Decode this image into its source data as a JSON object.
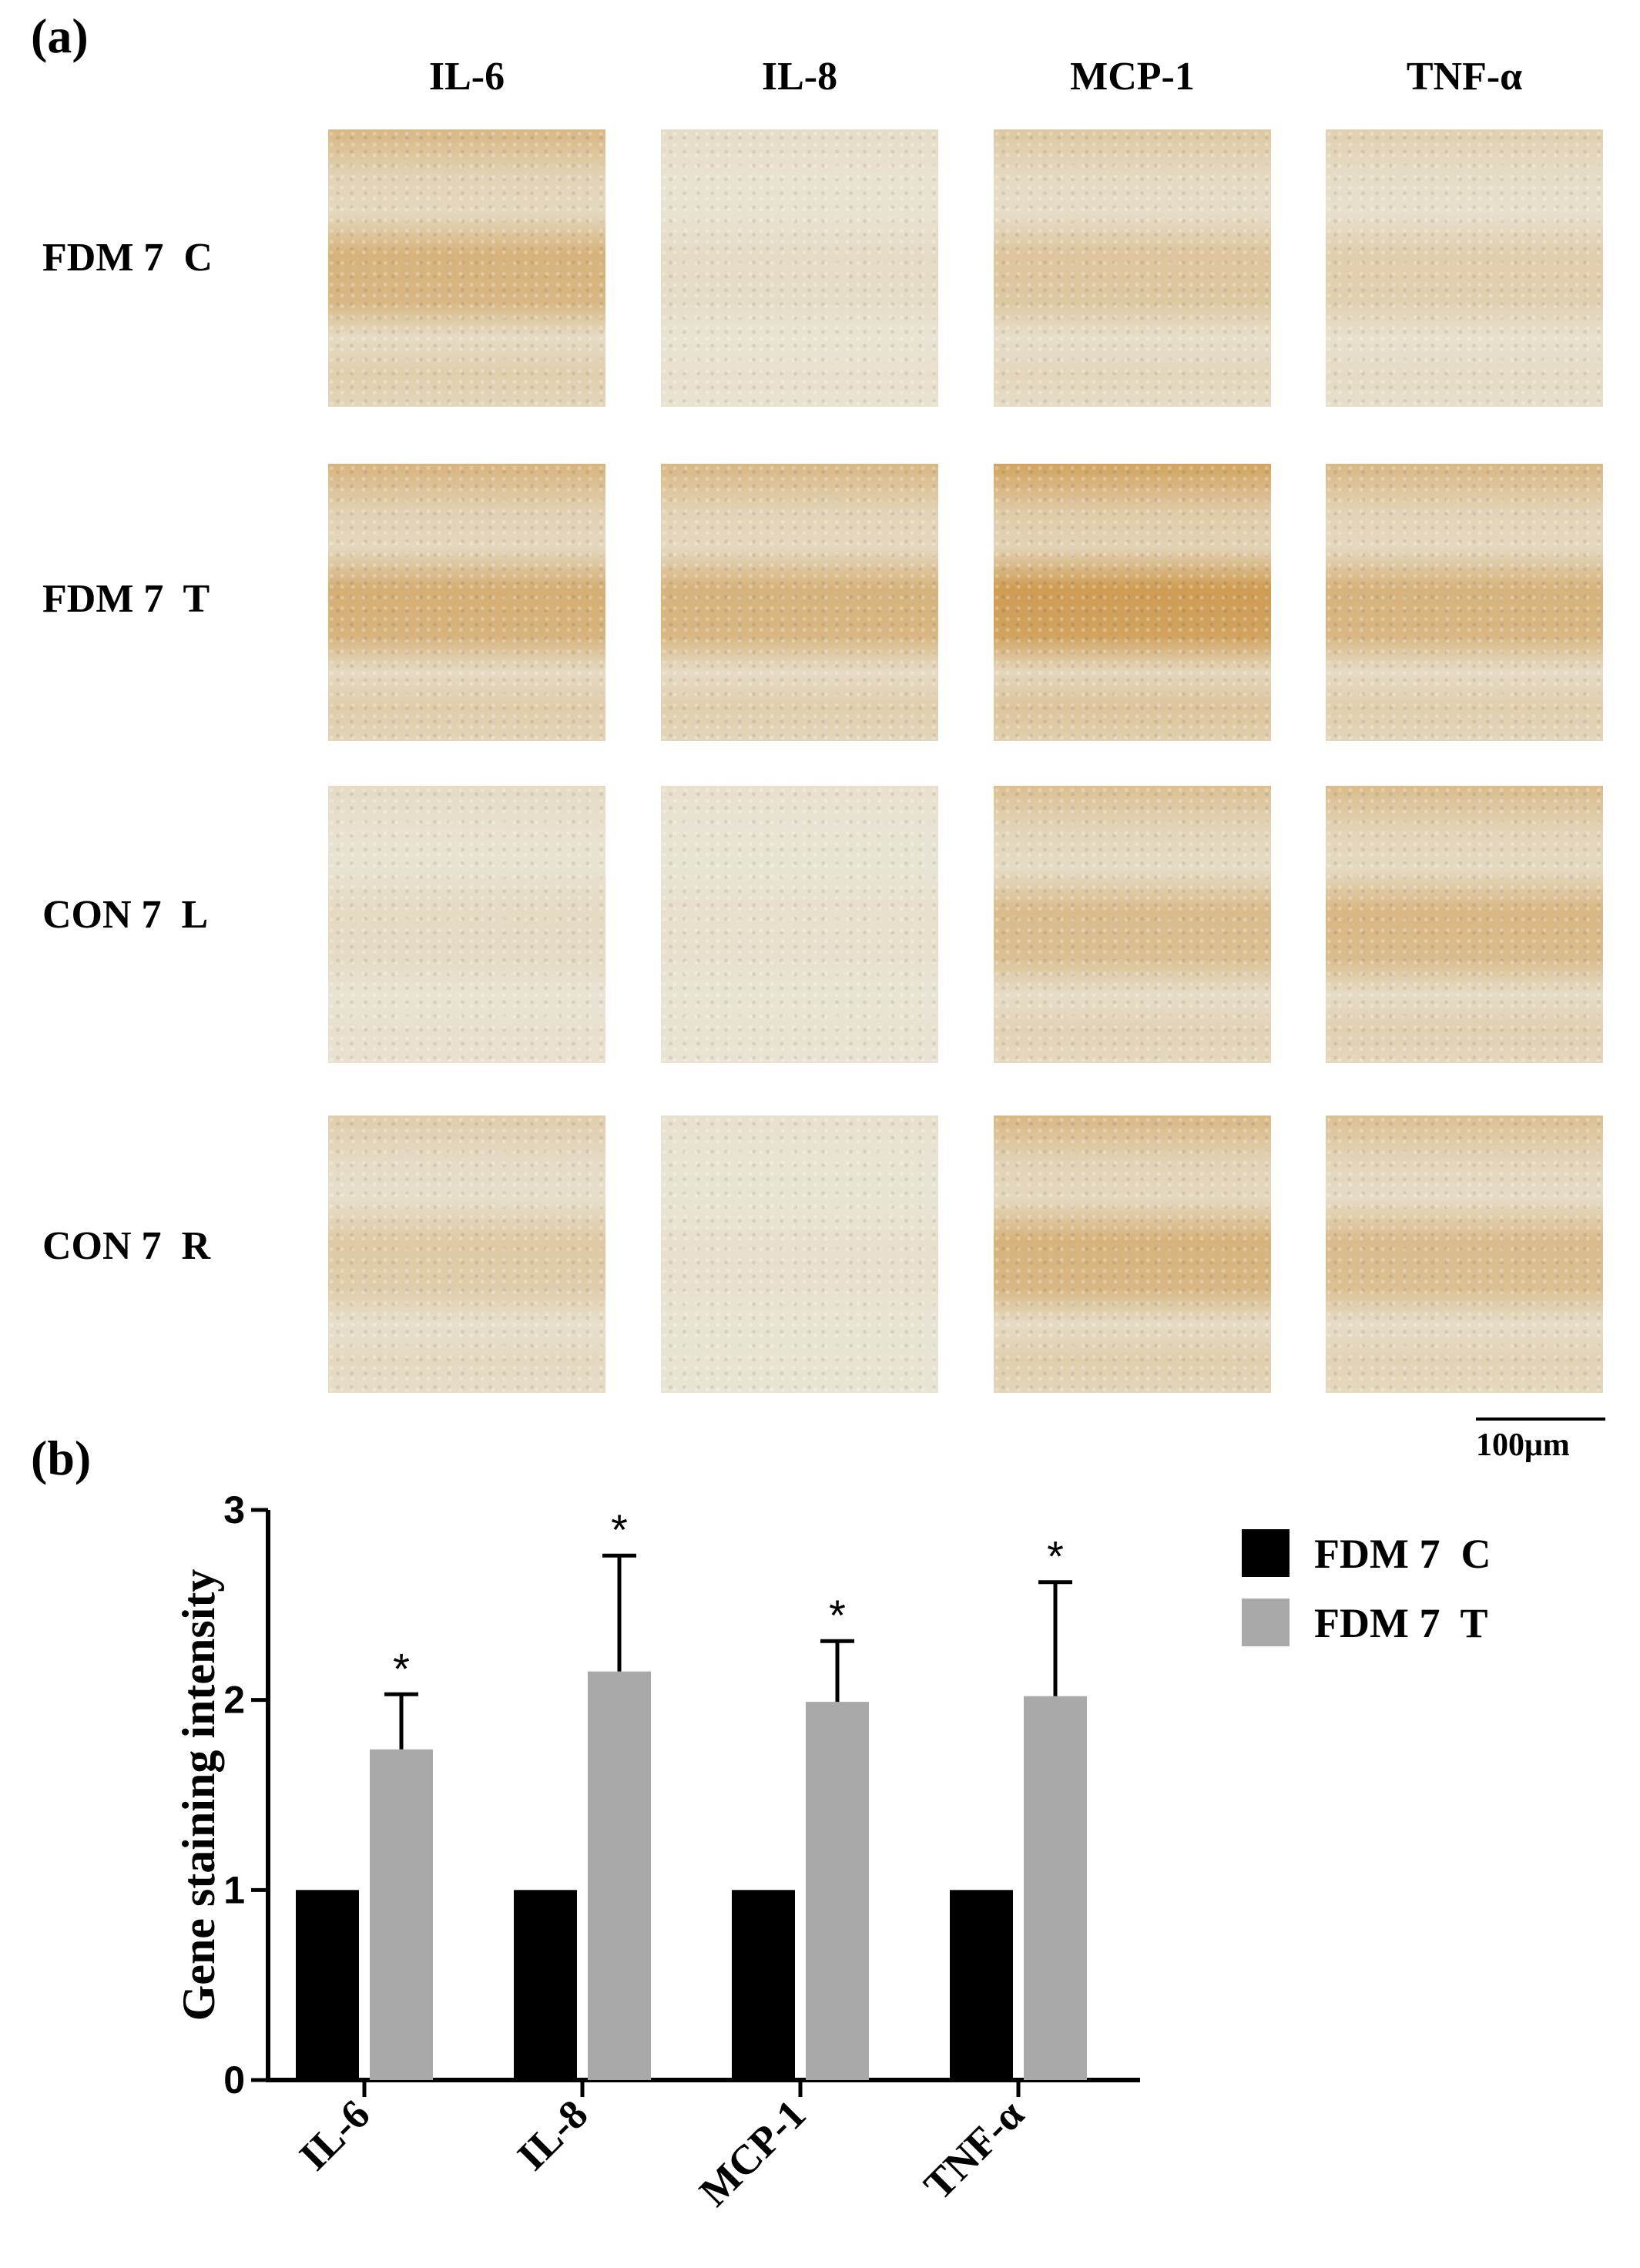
{
  "panel_a": {
    "label": "(a)",
    "columns": [
      "IL-6",
      "IL-8",
      "MCP-1",
      "TNF-α"
    ],
    "rows": [
      "FDM 7  C",
      "FDM 7  T",
      "CON 7  L",
      "CON 7  R"
    ],
    "scale_bar": "100μm",
    "stain_levels": [
      [
        0.55,
        0.1,
        0.35,
        0.25
      ],
      [
        0.6,
        0.55,
        0.8,
        0.55
      ],
      [
        0.12,
        0.06,
        0.45,
        0.5
      ],
      [
        0.3,
        0.05,
        0.55,
        0.45
      ]
    ],
    "colors": {
      "stain": "#c88a32",
      "tissue": "#e9e5d6",
      "dark_stain": "#5a2c10"
    }
  },
  "panel_b": {
    "label": "(b)"
  },
  "chart_data": {
    "type": "bar",
    "categories": [
      "IL-6",
      "IL-8",
      "MCP-1",
      "TNF-α"
    ],
    "series": [
      {
        "name": "FDM 7  C",
        "values": [
          1,
          1,
          1,
          1
        ],
        "color": "#000000"
      },
      {
        "name": "FDM 7  T",
        "values": [
          1.74,
          2.15,
          1.99,
          2.02
        ],
        "errors": [
          0.29,
          0.61,
          0.32,
          0.6
        ],
        "color": "#a9a9a9"
      }
    ],
    "ylabel": "Gene staining intensity",
    "ylim": [
      0,
      3
    ],
    "yticks": [
      "0",
      "1",
      "2",
      "3"
    ],
    "significance": [
      "*",
      "*",
      "*",
      "*"
    ],
    "legend_position": "top-right"
  }
}
